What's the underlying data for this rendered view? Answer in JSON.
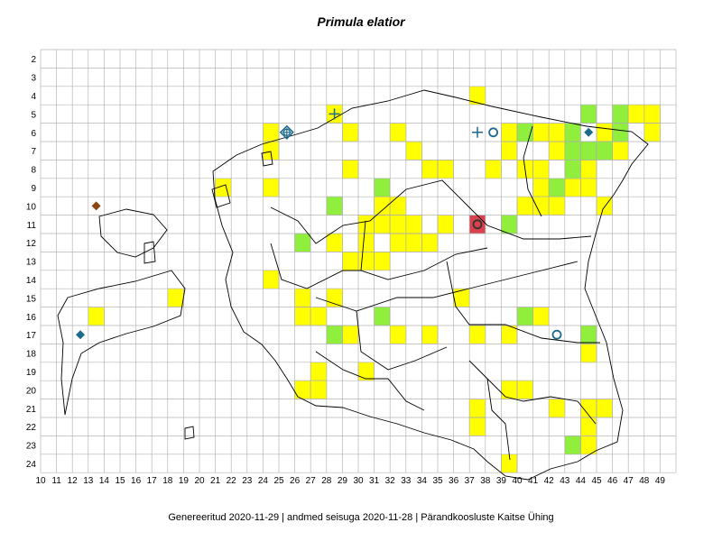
{
  "title": "Primula elatior",
  "footer": "Genereeritud 2020-11-29  |  andmed seisuga 2020-11-28  |  Pärandkoosluste Kaitse Ühing",
  "colors": {
    "yellow": "#ffff00",
    "green": "#90ee3c",
    "red": "#d9414e",
    "grid": "#b5b5b5",
    "border": "#000000",
    "blue_marker": "#1c6b8c",
    "brown_marker": "#8b4513"
  },
  "grid": {
    "columns": [
      10,
      11,
      12,
      13,
      14,
      15,
      16,
      17,
      18,
      19,
      20,
      21,
      22,
      23,
      24,
      25,
      26,
      27,
      28,
      29,
      30,
      31,
      32,
      33,
      34,
      35,
      36,
      37,
      38,
      39,
      40,
      41,
      42,
      43,
      44,
      45,
      46,
      47,
      48,
      49
    ],
    "rows": [
      2,
      3,
      4,
      5,
      6,
      7,
      8,
      9,
      10,
      11,
      12,
      13,
      14,
      15,
      16,
      17,
      18,
      19,
      20,
      21,
      22,
      23,
      24
    ],
    "column_labels": [
      "10",
      "11",
      "12",
      "13",
      "14",
      "15",
      "16",
      "17",
      "18",
      "19",
      "20",
      "21",
      "22",
      "23",
      "24",
      "25",
      "26",
      "27",
      "28",
      "29",
      "30",
      "31",
      "32",
      "33",
      "34",
      "35",
      "36",
      "37",
      "38",
      "39",
      "40",
      "41",
      "42",
      "43",
      "44",
      "45",
      "46",
      "47",
      "48",
      "49"
    ],
    "row_labels": [
      "2",
      "3",
      "4",
      "5",
      "6",
      "7",
      "8",
      "9",
      "10",
      "11",
      "12",
      "13",
      "14",
      "15",
      "16",
      "17",
      "18",
      "19",
      "20",
      "21",
      "22",
      "23",
      "24"
    ]
  },
  "cells": {
    "yellow": [
      [
        37,
        4
      ],
      [
        28,
        5
      ],
      [
        47,
        5
      ],
      [
        48,
        5
      ],
      [
        24,
        6
      ],
      [
        29,
        6
      ],
      [
        32,
        6
      ],
      [
        39,
        6
      ],
      [
        41,
        6
      ],
      [
        42,
        6
      ],
      [
        45,
        6
      ],
      [
        48,
        6
      ],
      [
        24,
        7
      ],
      [
        33,
        7
      ],
      [
        39,
        7
      ],
      [
        42,
        7
      ],
      [
        46,
        7
      ],
      [
        29,
        8
      ],
      [
        34,
        8
      ],
      [
        35,
        8
      ],
      [
        38,
        8
      ],
      [
        40,
        8
      ],
      [
        41,
        8
      ],
      [
        44,
        8
      ],
      [
        21,
        9
      ],
      [
        24,
        9
      ],
      [
        41,
        9
      ],
      [
        43,
        9
      ],
      [
        44,
        9
      ],
      [
        31,
        10
      ],
      [
        32,
        10
      ],
      [
        40,
        10
      ],
      [
        41,
        10
      ],
      [
        42,
        10
      ],
      [
        45,
        10
      ],
      [
        30,
        11
      ],
      [
        31,
        11
      ],
      [
        32,
        11
      ],
      [
        33,
        11
      ],
      [
        35,
        11
      ],
      [
        28,
        12
      ],
      [
        30,
        12
      ],
      [
        32,
        12
      ],
      [
        33,
        12
      ],
      [
        34,
        12
      ],
      [
        29,
        13
      ],
      [
        30,
        13
      ],
      [
        31,
        13
      ],
      [
        24,
        14
      ],
      [
        18,
        15
      ],
      [
        26,
        15
      ],
      [
        28,
        15
      ],
      [
        36,
        15
      ],
      [
        13,
        16
      ],
      [
        26,
        16
      ],
      [
        27,
        16
      ],
      [
        41,
        16
      ],
      [
        29,
        17
      ],
      [
        32,
        17
      ],
      [
        34,
        17
      ],
      [
        37,
        17
      ],
      [
        39,
        17
      ],
      [
        44,
        18
      ],
      [
        27,
        19
      ],
      [
        30,
        19
      ],
      [
        26,
        20
      ],
      [
        27,
        20
      ],
      [
        39,
        20
      ],
      [
        40,
        20
      ],
      [
        37,
        21
      ],
      [
        42,
        21
      ],
      [
        44,
        21
      ],
      [
        45,
        21
      ],
      [
        37,
        22
      ],
      [
        44,
        22
      ],
      [
        44,
        23
      ],
      [
        39,
        24
      ]
    ],
    "green": [
      [
        44,
        5
      ],
      [
        46,
        5
      ],
      [
        40,
        6
      ],
      [
        43,
        6
      ],
      [
        46,
        6
      ],
      [
        43,
        7
      ],
      [
        44,
        7
      ],
      [
        45,
        7
      ],
      [
        43,
        8
      ],
      [
        31,
        9
      ],
      [
        42,
        9
      ],
      [
        28,
        10
      ],
      [
        39,
        11
      ],
      [
        26,
        12
      ],
      [
        31,
        16
      ],
      [
        40,
        16
      ],
      [
        28,
        17
      ],
      [
        44,
        17
      ],
      [
        43,
        23
      ]
    ],
    "red": [
      [
        37,
        11
      ]
    ]
  },
  "markers": [
    {
      "type": "diamond",
      "color": "brown",
      "col": 13,
      "row": 10
    },
    {
      "type": "diamond",
      "color": "blue",
      "col": 12,
      "row": 17
    },
    {
      "type": "diamond-circle-cross",
      "color": "blue",
      "col": 25,
      "row": 6
    },
    {
      "type": "cross",
      "color": "blue",
      "col": 28,
      "row": 5
    },
    {
      "type": "cross",
      "color": "blue",
      "col": 37,
      "row": 6
    },
    {
      "type": "circle",
      "color": "blue",
      "col": 38,
      "row": 6
    },
    {
      "type": "diamond",
      "color": "blue",
      "col": 44,
      "row": 6
    },
    {
      "type": "circle",
      "color": "dark",
      "col": 37,
      "row": 11
    },
    {
      "type": "circle",
      "color": "blue",
      "col": 42,
      "row": 17
    }
  ]
}
